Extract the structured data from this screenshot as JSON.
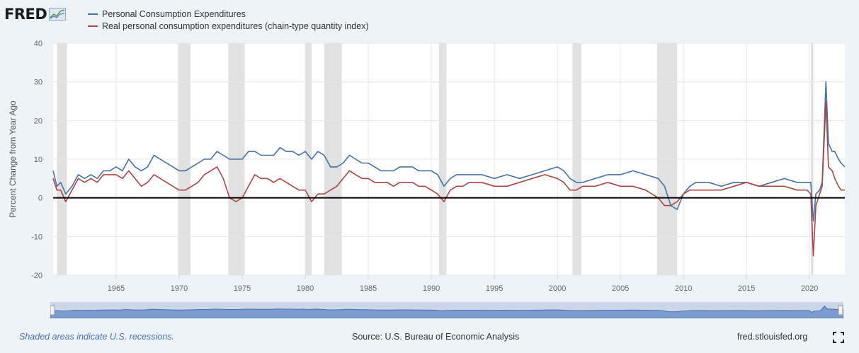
{
  "logo": {
    "text": "FRED"
  },
  "legend": [
    {
      "label": "Personal Consumption Expenditures",
      "color": "#4572a7"
    },
    {
      "label": "Real personal consumption expenditures (chain-type quantity index)",
      "color": "#aa4643"
    }
  ],
  "footer": {
    "recession_note": "Shaded areas indicate U.S. recessions.",
    "source": "Source: U.S. Bureau of Economic Analysis",
    "site": "fred.stlouisfed.org"
  },
  "chart_data": {
    "type": "line",
    "ylabel": "Percent Change from Year Ago",
    "ylim": [
      -20,
      40
    ],
    "yticks": [
      40,
      30,
      20,
      10,
      0,
      -10,
      -20
    ],
    "xlim": [
      1960.0,
      2022.8
    ],
    "xticks": [
      1965,
      1970,
      1975,
      1980,
      1985,
      1990,
      1995,
      2000,
      2005,
      2010,
      2015,
      2020
    ],
    "grid": true,
    "legend_position": "top-left",
    "zero_line": true,
    "recessions": [
      [
        1960.3,
        1961.1
      ],
      [
        1969.9,
        1970.9
      ],
      [
        1973.9,
        1975.2
      ],
      [
        1980.0,
        1980.5
      ],
      [
        1981.5,
        1982.9
      ],
      [
        1990.6,
        1991.2
      ],
      [
        2001.2,
        2001.9
      ],
      [
        2007.9,
        2009.5
      ],
      [
        2020.1,
        2020.3
      ]
    ],
    "series": [
      {
        "name": "Personal Consumption Expenditures",
        "color": "#4572a7",
        "x": [
          1960.0,
          1960.3,
          1960.6,
          1961.0,
          1961.5,
          1962.0,
          1962.5,
          1963.0,
          1963.5,
          1964.0,
          1964.5,
          1965.0,
          1965.5,
          1966.0,
          1966.5,
          1967.0,
          1967.5,
          1968.0,
          1968.5,
          1969.0,
          1969.5,
          1970.0,
          1970.5,
          1971.0,
          1971.5,
          1972.0,
          1972.5,
          1973.0,
          1973.5,
          1974.0,
          1974.5,
          1975.0,
          1975.5,
          1976.0,
          1976.5,
          1977.0,
          1977.5,
          1978.0,
          1978.5,
          1979.0,
          1979.5,
          1980.0,
          1980.5,
          1981.0,
          1981.5,
          1982.0,
          1982.5,
          1983.0,
          1983.5,
          1984.0,
          1984.5,
          1985.0,
          1985.5,
          1986.0,
          1986.5,
          1987.0,
          1987.5,
          1988.0,
          1988.5,
          1989.0,
          1989.5,
          1990.0,
          1990.5,
          1991.0,
          1991.5,
          1992.0,
          1992.5,
          1993.0,
          1994.0,
          1995.0,
          1996.0,
          1997.0,
          1998.0,
          1999.0,
          2000.0,
          2000.5,
          2001.0,
          2001.5,
          2002.0,
          2003.0,
          2004.0,
          2005.0,
          2006.0,
          2007.0,
          2008.0,
          2008.5,
          2009.0,
          2009.5,
          2010.0,
          2010.5,
          2011.0,
          2012.0,
          2013.0,
          2014.0,
          2015.0,
          2016.0,
          2017.0,
          2018.0,
          2019.0,
          2019.8,
          2020.1,
          2020.3,
          2020.5,
          2020.8,
          2021.0,
          2021.3,
          2021.5,
          2021.8,
          2022.0,
          2022.3,
          2022.5,
          2022.8
        ],
        "values": [
          7,
          3,
          4,
          1,
          3,
          6,
          5,
          6,
          5,
          7,
          7,
          8,
          7,
          10,
          8,
          7,
          8,
          11,
          10,
          9,
          8,
          7,
          7,
          8,
          9,
          10,
          10,
          12,
          11,
          10,
          10,
          10,
          12,
          12,
          11,
          11,
          11,
          13,
          12,
          12,
          11,
          12,
          10,
          12,
          11,
          8,
          8,
          9,
          11,
          10,
          9,
          9,
          8,
          7,
          7,
          7,
          8,
          8,
          8,
          7,
          7,
          7,
          6,
          3,
          5,
          6,
          6,
          6,
          6,
          5,
          6,
          5,
          6,
          7,
          8,
          7,
          5,
          4,
          4,
          5,
          6,
          6,
          7,
          6,
          5,
          3,
          -2,
          -3,
          1,
          3,
          4,
          4,
          3,
          4,
          4,
          3,
          4,
          5,
          4,
          4,
          4,
          -6,
          1,
          2,
          4,
          30,
          14,
          12,
          12,
          10,
          9,
          8
        ]
      },
      {
        "name": "Real personal consumption expenditures (chain-type quantity index)",
        "color": "#aa4643",
        "x": [
          1960.0,
          1960.3,
          1960.6,
          1961.0,
          1961.5,
          1962.0,
          1962.5,
          1963.0,
          1963.5,
          1964.0,
          1964.5,
          1965.0,
          1965.5,
          1966.0,
          1966.5,
          1967.0,
          1967.5,
          1968.0,
          1968.5,
          1969.0,
          1969.5,
          1970.0,
          1970.5,
          1971.0,
          1971.5,
          1972.0,
          1972.5,
          1973.0,
          1973.5,
          1974.0,
          1974.5,
          1975.0,
          1975.5,
          1976.0,
          1976.5,
          1977.0,
          1977.5,
          1978.0,
          1978.5,
          1979.0,
          1979.5,
          1980.0,
          1980.5,
          1981.0,
          1981.5,
          1982.0,
          1982.5,
          1983.0,
          1983.5,
          1984.0,
          1984.5,
          1985.0,
          1985.5,
          1986.0,
          1986.5,
          1987.0,
          1987.5,
          1988.0,
          1988.5,
          1989.0,
          1989.5,
          1990.0,
          1990.5,
          1991.0,
          1991.5,
          1992.0,
          1992.5,
          1993.0,
          1994.0,
          1995.0,
          1996.0,
          1997.0,
          1998.0,
          1999.0,
          2000.0,
          2000.5,
          2001.0,
          2001.5,
          2002.0,
          2003.0,
          2004.0,
          2005.0,
          2006.0,
          2007.0,
          2008.0,
          2008.5,
          2009.0,
          2009.5,
          2010.0,
          2010.5,
          2011.0,
          2012.0,
          2013.0,
          2014.0,
          2015.0,
          2016.0,
          2017.0,
          2018.0,
          2019.0,
          2019.8,
          2020.1,
          2020.3,
          2020.5,
          2020.8,
          2021.0,
          2021.3,
          2021.5,
          2021.8,
          2022.0,
          2022.3,
          2022.5,
          2022.8
        ],
        "values": [
          5,
          2,
          2,
          -1,
          2,
          5,
          4,
          5,
          4,
          6,
          6,
          6,
          5,
          7,
          5,
          3,
          4,
          6,
          5,
          4,
          3,
          2,
          2,
          3,
          4,
          6,
          7,
          8,
          5,
          0,
          -1,
          0,
          3,
          6,
          5,
          5,
          4,
          5,
          4,
          3,
          2,
          2,
          -1,
          1,
          1,
          2,
          3,
          5,
          7,
          6,
          5,
          5,
          4,
          4,
          4,
          3,
          4,
          4,
          4,
          3,
          3,
          2,
          1,
          -1,
          2,
          3,
          3,
          4,
          4,
          3,
          3,
          4,
          5,
          6,
          5,
          4,
          2,
          2,
          3,
          3,
          4,
          3,
          3,
          2,
          0,
          -2,
          -2,
          -1,
          1,
          2,
          2,
          2,
          2,
          3,
          4,
          3,
          3,
          3,
          2,
          2,
          1,
          -15,
          -2,
          1,
          3,
          25,
          8,
          7,
          5,
          3,
          2,
          2
        ]
      }
    ]
  }
}
